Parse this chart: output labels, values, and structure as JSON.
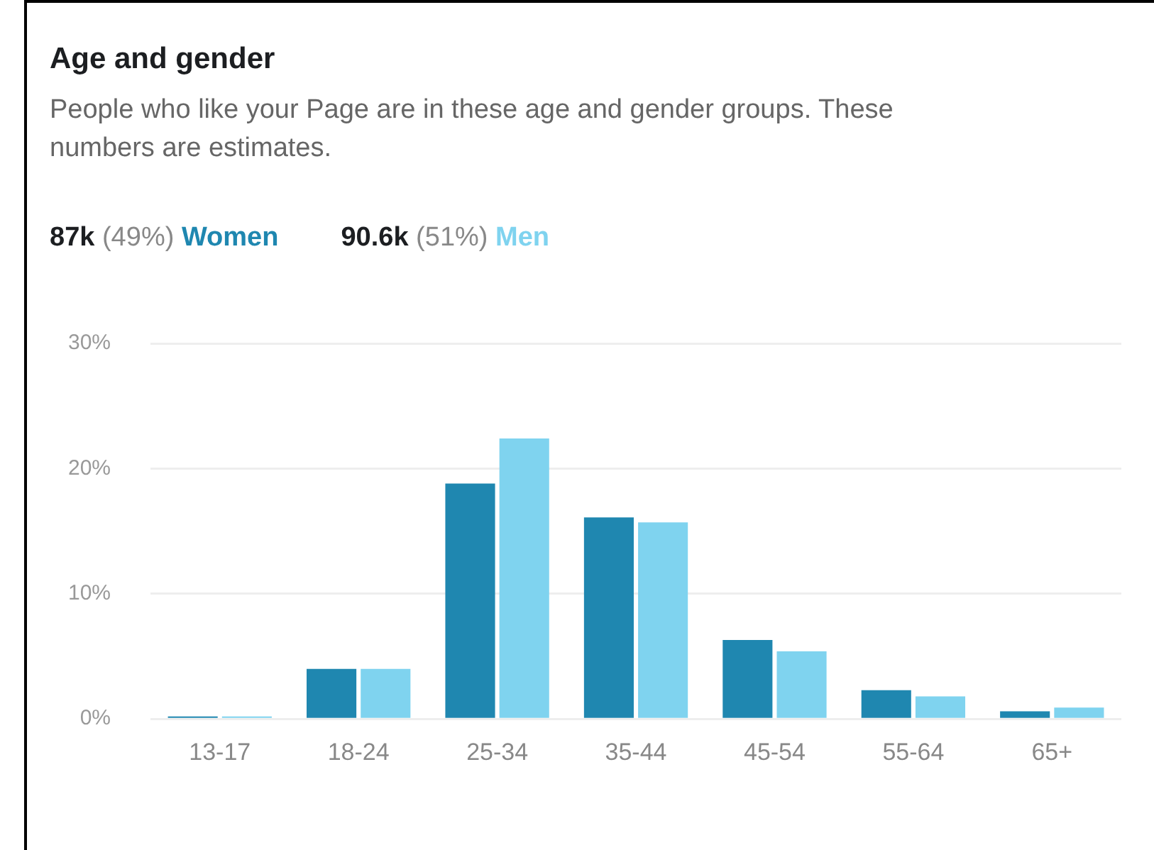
{
  "chart_data": {
    "type": "bar",
    "title": "Age and gender",
    "subtitle": "People who like your Page are in these age and gender groups. These numbers are estimates.",
    "categories": [
      "13-17",
      "18-24",
      "25-34",
      "35-44",
      "45-54",
      "55-64",
      "65+"
    ],
    "series": [
      {
        "name": "Women",
        "color": "#1f87b0",
        "values": [
          0.2,
          4.0,
          18.8,
          16.1,
          6.3,
          2.3,
          0.6
        ]
      },
      {
        "name": "Men",
        "color": "#7fd3ef",
        "values": [
          0.2,
          4.0,
          22.4,
          15.7,
          5.4,
          1.8,
          0.9
        ]
      }
    ],
    "annotations": [
      "87k (49%)",
      "90.6k (51%)"
    ],
    "ylim": [
      0,
      30
    ],
    "yticks": [
      {
        "value": 0,
        "label": "0%"
      },
      {
        "value": 10,
        "label": "10%"
      },
      {
        "value": 20,
        "label": "20%"
      },
      {
        "value": 30,
        "label": "30%"
      }
    ],
    "grid": "y",
    "legend": "top left"
  }
}
